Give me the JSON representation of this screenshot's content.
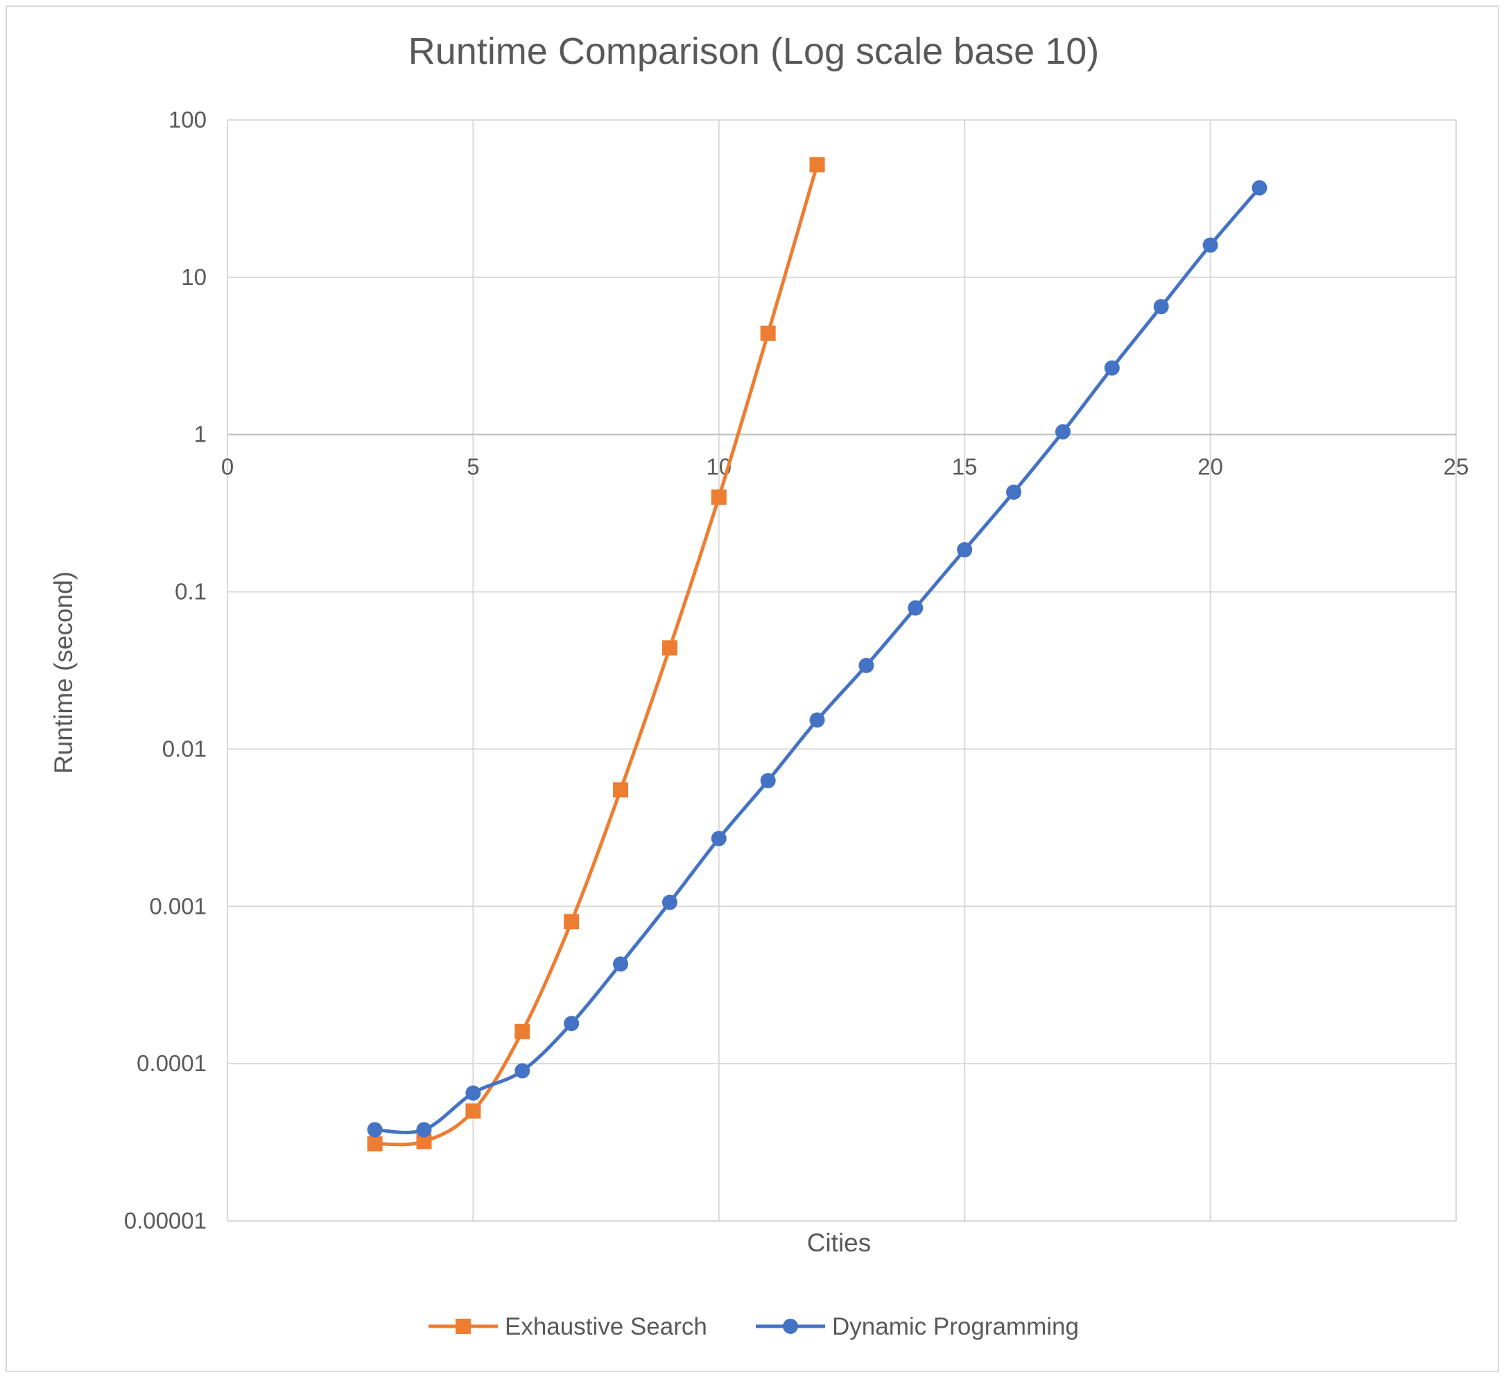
{
  "chart_data": {
    "type": "line",
    "title": "Runtime Comparison (Log scale base 10)",
    "xlabel": "Cities",
    "ylabel": "Runtime (second)",
    "xlim": [
      0,
      25
    ],
    "ylim": [
      1e-05,
      100
    ],
    "yscale": "log10",
    "x_tick_values": [
      0,
      5,
      10,
      15,
      20,
      25
    ],
    "x_ticks": [
      "0",
      "5",
      "10",
      "15",
      "20",
      "25"
    ],
    "y_tick_values": [
      100,
      10,
      1,
      0.1,
      0.01,
      0.001,
      0.0001,
      1e-05
    ],
    "y_ticks": [
      "100",
      "10",
      "1",
      "0.1",
      "0.01",
      "0.001",
      "0.0001",
      "0.00001"
    ],
    "x_axis_crosses_at": 1,
    "grid": true,
    "legend_position": "bottom",
    "series": [
      {
        "name": "Exhaustive Search",
        "color": "#ED7D31",
        "marker": "square",
        "x": [
          3,
          4,
          5,
          6,
          7,
          8,
          9,
          10,
          11,
          12
        ],
        "y": [
          3.1e-05,
          3.2e-05,
          5e-05,
          0.00016,
          0.0008,
          0.0055,
          0.044,
          0.4,
          4.4,
          52
        ]
      },
      {
        "name": "Dynamic Programming",
        "color": "#4472C4",
        "marker": "circle",
        "x": [
          3,
          4,
          5,
          6,
          7,
          8,
          9,
          10,
          11,
          12,
          13,
          14,
          15,
          16,
          17,
          18,
          19,
          20,
          21
        ],
        "y": [
          3.8e-05,
          3.8e-05,
          6.5e-05,
          9e-05,
          0.00018,
          0.00043,
          0.00106,
          0.0027,
          0.0063,
          0.0153,
          0.034,
          0.079,
          0.185,
          0.43,
          1.04,
          2.65,
          6.5,
          16,
          37
        ]
      }
    ]
  }
}
